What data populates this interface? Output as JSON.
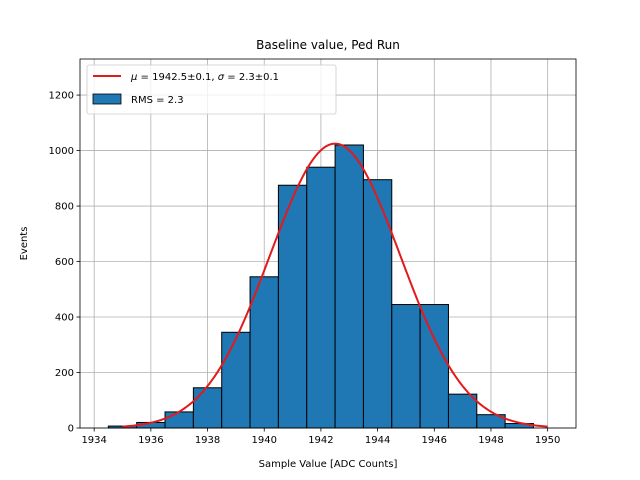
{
  "chart_data": {
    "type": "bar",
    "title": "Baseline value, Ped Run",
    "xlabel": "Sample Value [ADC Counts]",
    "ylabel": "Events",
    "xlim": [
      1933.5,
      1951.0
    ],
    "ylim": [
      0,
      1330
    ],
    "x_ticks": [
      1934,
      1936,
      1938,
      1940,
      1942,
      1944,
      1946,
      1948,
      1950
    ],
    "x_tick_labels": [
      "1934",
      "1936",
      "1938",
      "1940",
      "1942",
      "1944",
      "1946",
      "1948",
      "1950"
    ],
    "y_ticks": [
      0,
      200,
      400,
      600,
      800,
      1000,
      1200
    ],
    "y_tick_labels": [
      "0",
      "200",
      "400",
      "600",
      "800",
      "1000",
      "1200"
    ],
    "grid": true,
    "legend_position": "top-left",
    "histogram": {
      "name": "RMS = 2.3",
      "color": "#1f77b4",
      "edge_color": "#000000",
      "bins": [
        {
          "x0": 1934.5,
          "x1": 1935.5,
          "count": 7
        },
        {
          "x0": 1935.5,
          "x1": 1936.5,
          "count": 20
        },
        {
          "x0": 1936.5,
          "x1": 1937.5,
          "count": 58
        },
        {
          "x0": 1937.5,
          "x1": 1938.5,
          "count": 145
        },
        {
          "x0": 1938.5,
          "x1": 1939.5,
          "count": 345
        },
        {
          "x0": 1939.5,
          "x1": 1940.5,
          "count": 545
        },
        {
          "x0": 1940.5,
          "x1": 1941.5,
          "count": 875
        },
        {
          "x0": 1941.5,
          "x1": 1942.5,
          "count": 940
        },
        {
          "x0": 1942.5,
          "x1": 1943.5,
          "count": 1020
        },
        {
          "x0": 1943.5,
          "x1": 1944.5,
          "count": 895
        },
        {
          "x0": 1944.5,
          "x1": 1945.5,
          "count": 445
        },
        {
          "x0": 1945.5,
          "x1": 1946.5,
          "count": 445
        },
        {
          "x0": 1946.5,
          "x1": 1947.5,
          "count": 122
        },
        {
          "x0": 1947.5,
          "x1": 1948.5,
          "count": 48
        },
        {
          "x0": 1948.5,
          "x1": 1949.5,
          "count": 16
        }
      ]
    },
    "fit": {
      "type": "gaussian",
      "legend_prefix_mu": "μ",
      "legend_text": " = 1942.5±0.1, ",
      "legend_prefix_sigma": "σ",
      "legend_text_2": " = 2.3±0.1",
      "mu": 1942.5,
      "sigma": 2.3,
      "amplitude": 1025,
      "x_range": [
        1935.0,
        1950.0
      ],
      "color": "#e31a1c"
    }
  }
}
